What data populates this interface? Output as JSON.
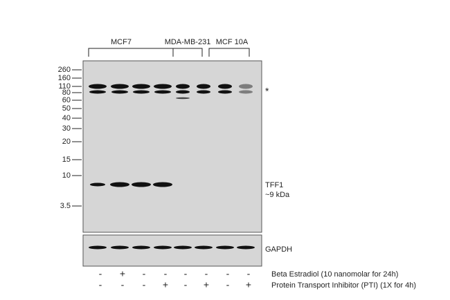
{
  "groups": [
    {
      "label": "MCF7"
    },
    {
      "label": "MDA-MB-231"
    },
    {
      "label": "MCF 10A"
    }
  ],
  "markers": [
    "260",
    "160",
    "110",
    "80",
    "60",
    "50",
    "40",
    "30",
    "20",
    "15",
    "10",
    "3.5"
  ],
  "band_labels": {
    "nonspecific": "*",
    "target": "TFF1",
    "target_size": "~9 kDa",
    "loading": "GAPDH"
  },
  "treatments": [
    {
      "label": "Beta Estradiol (10 nanomolar for 24h)",
      "signs": [
        "-",
        "+",
        "-",
        "-",
        "-",
        "-",
        "-",
        "-"
      ]
    },
    {
      "label": "Protein Transport Inhibitor (PTI) (1X for 4h)",
      "signs": [
        "-",
        "-",
        "-",
        "+",
        "-",
        "+",
        "-",
        "+"
      ]
    }
  ]
}
